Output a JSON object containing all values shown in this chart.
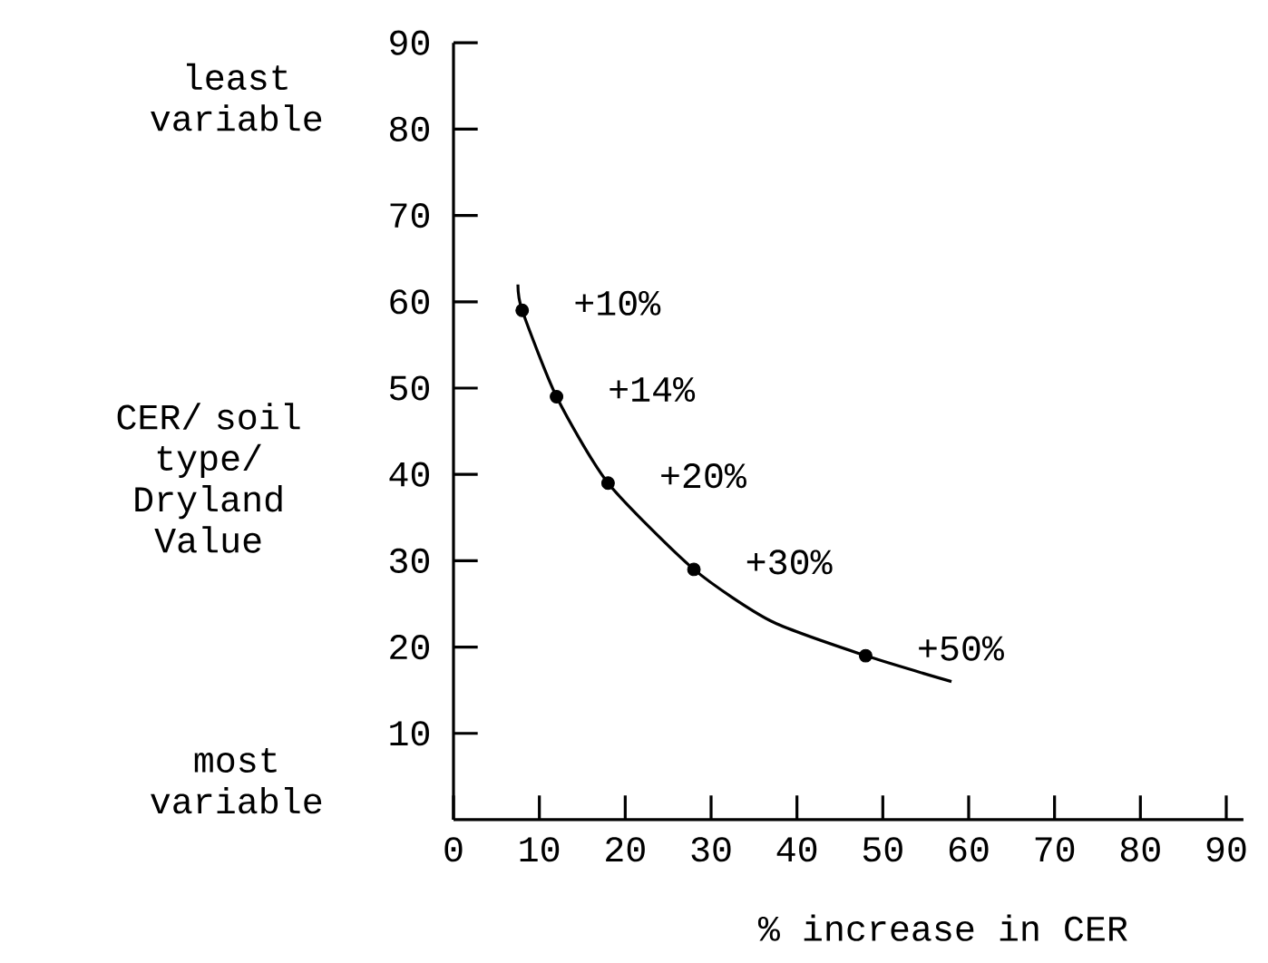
{
  "chart_data": {
    "type": "line",
    "xlabel": "% increase in CER",
    "ylabel": "CER/ soil type/ Dryland Value",
    "annotations": [
      "least variable",
      "most variable",
      {
        "text": "+10%",
        "x": 8,
        "y": 59
      },
      {
        "text": "+14%",
        "x": 12,
        "y": 49
      },
      {
        "text": "+20%",
        "x": 18,
        "y": 39
      },
      {
        "text": "+30%",
        "x": 28,
        "y": 29
      },
      {
        "text": "+50%",
        "x": 48,
        "y": 19
      }
    ],
    "marker": "circle",
    "series": [
      {
        "marker": "none",
        "color": "#000000",
        "x": [
          7.5,
          8,
          12,
          18,
          28,
          37,
          48,
          58
        ],
        "values": [
          62,
          59,
          49,
          39,
          29,
          23,
          19,
          16
        ]
      },
      {
        "type": "scatter",
        "color": "#000000",
        "x": [
          8,
          12,
          18,
          28,
          48
        ],
        "values": [
          59,
          49,
          39,
          29,
          19
        ]
      }
    ],
    "xlim": [
      0,
      92
    ],
    "ylim": [
      0,
      90
    ],
    "xticks": [
      0,
      10,
      20,
      30,
      40,
      50,
      60,
      70,
      80,
      90
    ],
    "yticks": [
      10,
      20,
      30,
      40,
      50,
      60,
      70,
      80,
      90
    ]
  }
}
